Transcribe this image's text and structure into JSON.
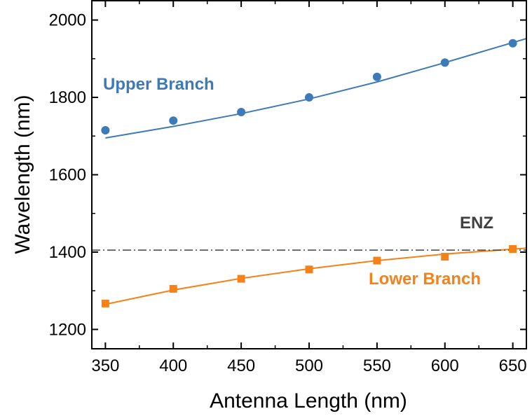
{
  "chart_data": {
    "type": "scatter",
    "xlabel": "Antenna Length (nm)",
    "ylabel": "Wavelength (nm)",
    "xlim": [
      340,
      660
    ],
    "ylim": [
      1150,
      2050
    ],
    "xticks": [
      350,
      400,
      450,
      500,
      550,
      600,
      650
    ],
    "yticks": [
      1200,
      1400,
      1600,
      1800,
      2000
    ],
    "grid": false,
    "series": [
      {
        "name": "Upper Branch",
        "color": "#3d7ab8",
        "marker": "circle",
        "x": [
          350,
          400,
          450,
          500,
          550,
          600,
          650
        ],
        "y": [
          1715,
          1740,
          1762,
          1800,
          1853,
          1890,
          1940
        ],
        "fit": {
          "x": [
            350,
            400,
            450,
            500,
            550,
            600,
            660
          ],
          "y": [
            1695,
            1725,
            1758,
            1796,
            1840,
            1890,
            1952
          ]
        }
      },
      {
        "name": "Lower Branch",
        "color": "#f58218",
        "marker": "square",
        "x": [
          350,
          400,
          450,
          500,
          550,
          600,
          650
        ],
        "y": [
          1267,
          1305,
          1331,
          1355,
          1378,
          1388,
          1408
        ],
        "fit": {
          "x": [
            350,
            400,
            450,
            500,
            550,
            600,
            660
          ],
          "y": [
            1265,
            1302,
            1332,
            1357,
            1378,
            1395,
            1410
          ]
        }
      }
    ],
    "reference_line": {
      "label": "ENZ",
      "y": 1405,
      "style": "dash-dot",
      "color": "#404040"
    },
    "annotations": [
      {
        "text": "Upper Branch",
        "color": "#3d7ab8"
      },
      {
        "text": "Lower Branch",
        "color": "#f58218"
      },
      {
        "text": "ENZ",
        "color": "#404040"
      }
    ]
  }
}
